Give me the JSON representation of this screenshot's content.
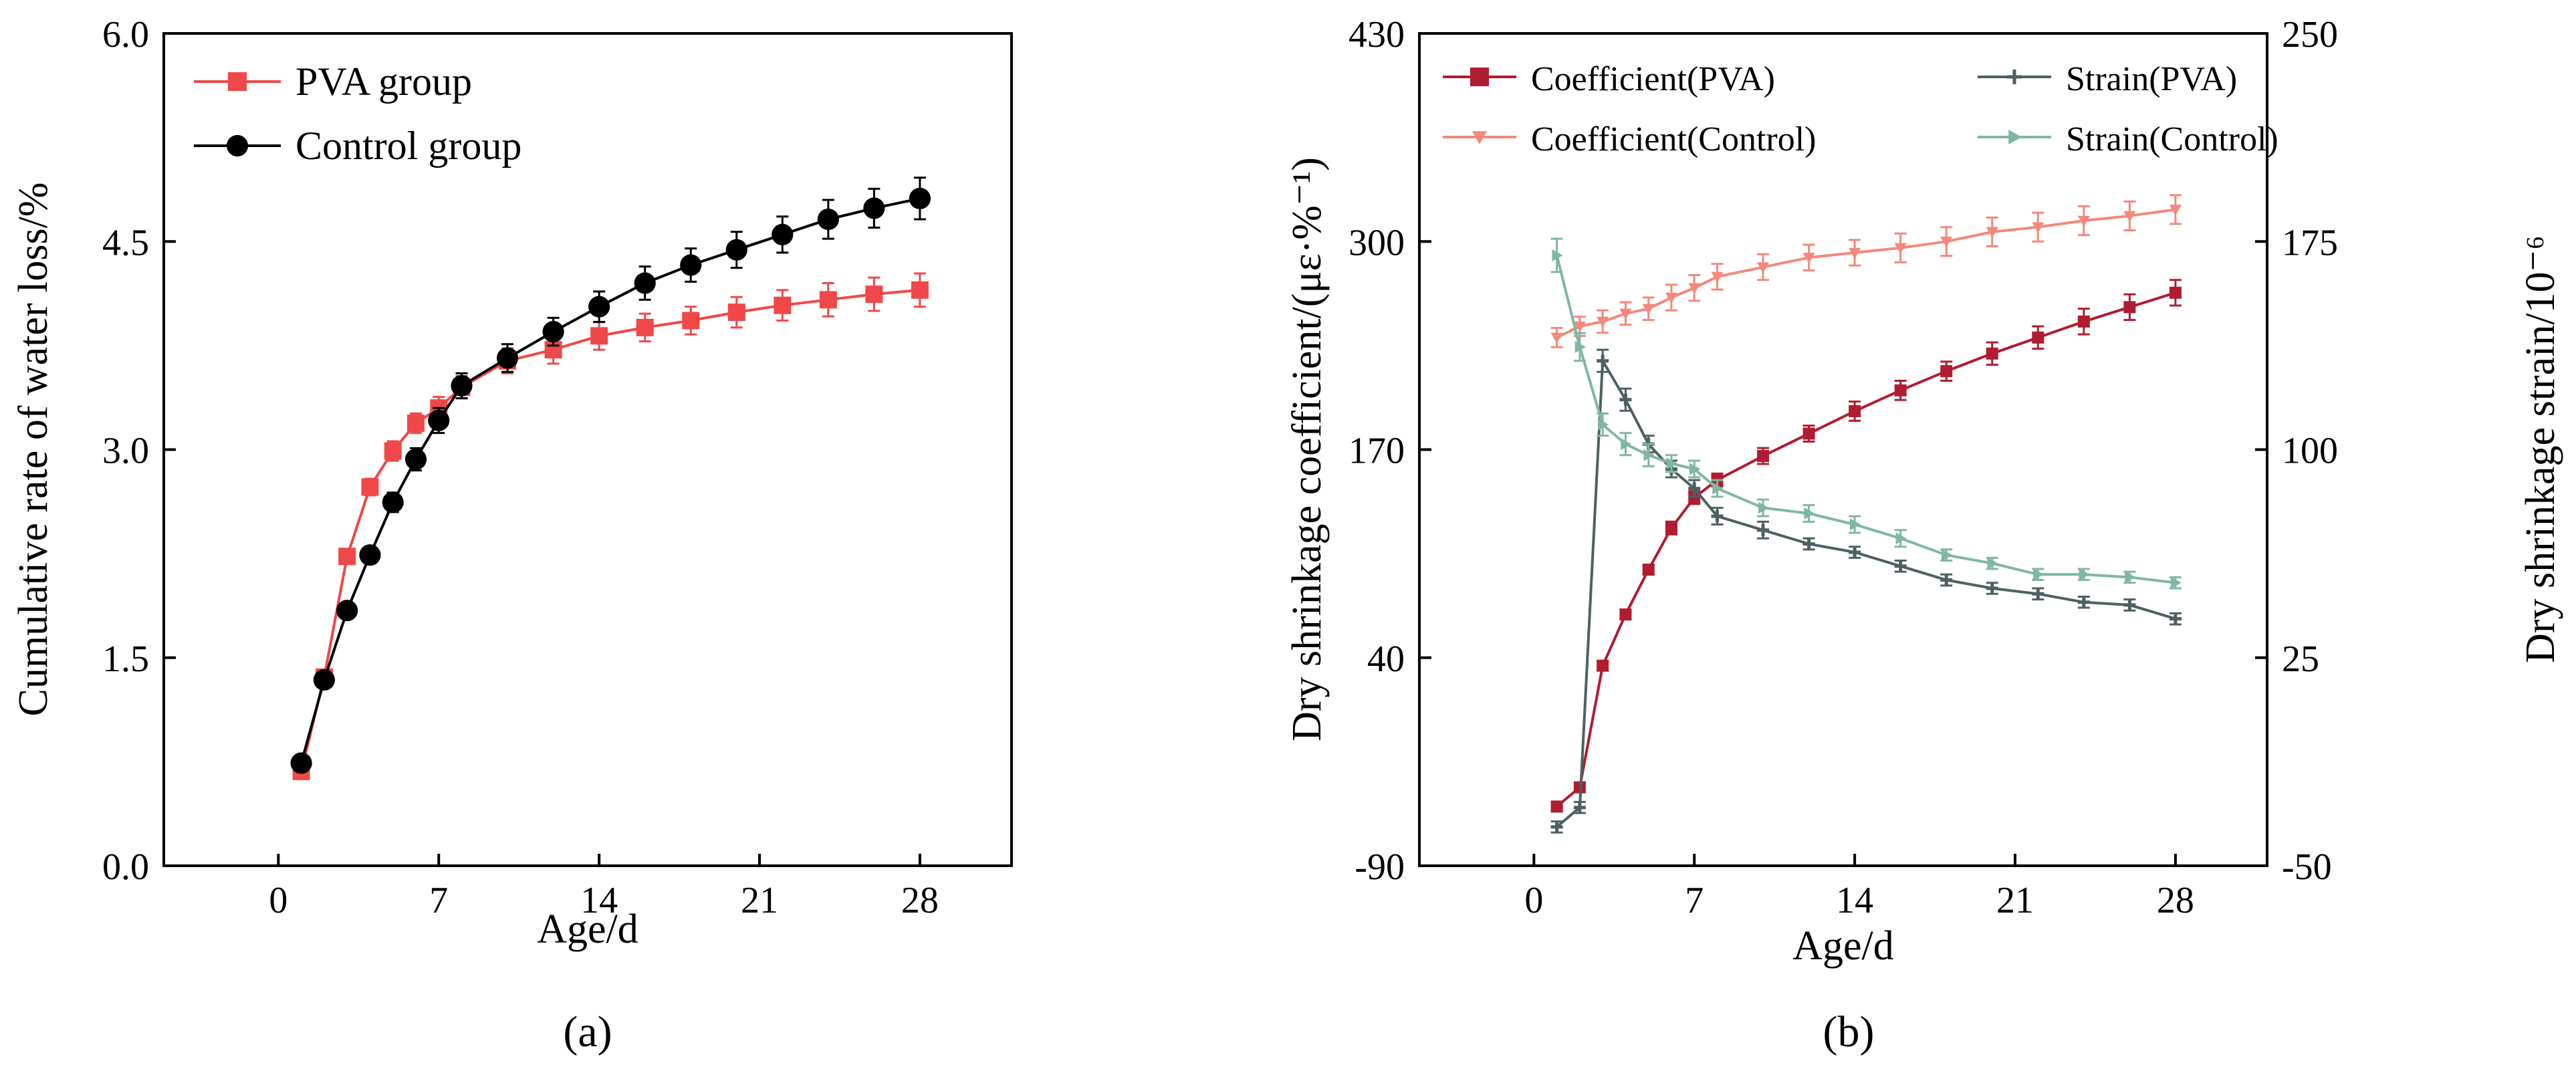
{
  "chart_data": [
    {
      "type": "line",
      "panel_label": "(a)",
      "xlabel": "Age/d",
      "ylabel": "Cumulative rate of water loss/%",
      "xlim": [
        -5,
        32
      ],
      "ylim": [
        0,
        6
      ],
      "xticks": [
        0,
        7,
        14,
        21,
        28
      ],
      "xtick_labels": [
        "0",
        "7",
        "14",
        "21",
        "28"
      ],
      "yticks": [
        0,
        1.5,
        3,
        4.5,
        6
      ],
      "ytick_labels": [
        "0.0",
        "1.5",
        "3.0",
        "4.5",
        "6.0"
      ],
      "legend": "top-left",
      "series": [
        {
          "name": "PVA group",
          "color": "#f04848",
          "marker": "square",
          "x": [
            1,
            2,
            3,
            4,
            5,
            6,
            7,
            8,
            10,
            12,
            14,
            16,
            18,
            20,
            22,
            24,
            26,
            28
          ],
          "y": [
            0.68,
            1.36,
            2.23,
            2.73,
            2.99,
            3.19,
            3.3,
            3.45,
            3.64,
            3.72,
            3.82,
            3.88,
            3.93,
            3.99,
            4.04,
            4.08,
            4.12,
            4.15
          ],
          "err": [
            0.03,
            0.04,
            0.05,
            0.06,
            0.07,
            0.07,
            0.08,
            0.08,
            0.09,
            0.1,
            0.1,
            0.1,
            0.1,
            0.11,
            0.11,
            0.12,
            0.12,
            0.12
          ]
        },
        {
          "name": "Control group",
          "color": "#000000",
          "marker": "circle",
          "x": [
            1,
            2,
            3,
            4,
            5,
            6,
            7,
            8,
            10,
            12,
            14,
            16,
            18,
            20,
            22,
            24,
            26,
            28
          ],
          "y": [
            0.74,
            1.34,
            1.84,
            2.24,
            2.62,
            2.93,
            3.21,
            3.46,
            3.66,
            3.85,
            4.03,
            4.2,
            4.33,
            4.44,
            4.55,
            4.66,
            4.74,
            4.81
          ],
          "err": [
            0.03,
            0.04,
            0.05,
            0.06,
            0.07,
            0.08,
            0.09,
            0.09,
            0.1,
            0.1,
            0.11,
            0.12,
            0.12,
            0.13,
            0.13,
            0.14,
            0.14,
            0.15
          ]
        }
      ]
    },
    {
      "type": "line",
      "panel_label": "(b)",
      "xlabel": "Age/d",
      "ylabel_left": "Dry shrinkage coefficient/(με·%⁻¹)",
      "ylabel_right": "Dry shrinkage strain/10⁻⁶",
      "xlim": [
        -5,
        32
      ],
      "ylim_left": [
        -90,
        430
      ],
      "ylim_right": [
        -50,
        250
      ],
      "xticks": [
        0,
        7,
        14,
        21,
        28
      ],
      "xtick_labels": [
        "0",
        "7",
        "14",
        "21",
        "28"
      ],
      "yticks_left": [
        -90,
        40,
        170,
        300,
        430
      ],
      "ytick_labels_left": [
        "-90",
        "40",
        "170",
        "300",
        "430"
      ],
      "yticks_right": [
        -50,
        25,
        100,
        175,
        250
      ],
      "ytick_labels_right": [
        "-50",
        "25",
        "100",
        "175",
        "250"
      ],
      "legend": "top",
      "series": [
        {
          "name": "Coefficient(PVA)",
          "axis": "left",
          "color": "#b01c30",
          "marker": "square",
          "x": [
            1,
            2,
            3,
            4,
            5,
            6,
            7,
            8,
            10,
            12,
            14,
            16,
            18,
            20,
            22,
            24,
            26,
            28
          ],
          "y": [
            -53,
            -41,
            35,
            67,
            95,
            121,
            140,
            151,
            166,
            180,
            194,
            207,
            219,
            230,
            240,
            250,
            259,
            268
          ],
          "err": [
            3,
            3,
            3,
            3,
            3,
            4,
            4,
            4,
            5,
            5,
            6,
            6,
            6,
            7,
            7,
            8,
            8,
            8
          ]
        },
        {
          "name": "Coefficient(Control)",
          "axis": "left",
          "color": "#f4887a",
          "marker": "triangle-down",
          "x": [
            1,
            2,
            3,
            4,
            5,
            6,
            7,
            8,
            10,
            12,
            14,
            16,
            18,
            20,
            22,
            24,
            26,
            28
          ],
          "y": [
            240,
            247,
            250,
            255,
            258,
            265,
            271,
            278,
            284,
            290,
            293,
            296,
            300,
            306,
            309,
            313,
            316,
            320
          ],
          "err": [
            6,
            6,
            7,
            7,
            7,
            8,
            8,
            8,
            8,
            8,
            8,
            9,
            9,
            9,
            9,
            9,
            9,
            9
          ]
        },
        {
          "name": "Strain(PVA)",
          "axis": "right",
          "color": "#4e6062",
          "marker": "plus",
          "x": [
            1,
            2,
            3,
            4,
            5,
            6,
            7,
            8,
            10,
            12,
            14,
            16,
            18,
            20,
            22,
            24,
            26,
            28
          ],
          "y": [
            -36,
            -29,
            132,
            118,
            102,
            93,
            86,
            76,
            71,
            66,
            63,
            58,
            53,
            50,
            48,
            45,
            44,
            39
          ],
          "err": [
            2,
            2,
            4,
            4,
            3,
            3,
            3,
            3,
            3,
            2,
            2,
            2,
            2,
            2,
            2,
            2,
            2,
            2
          ]
        },
        {
          "name": "Strain(Control)",
          "axis": "right",
          "color": "#7fb8a2",
          "marker": "triangle-right",
          "x": [
            1,
            2,
            3,
            4,
            5,
            6,
            7,
            8,
            10,
            12,
            14,
            16,
            18,
            20,
            22,
            24,
            26,
            28
          ],
          "y": [
            170,
            137,
            109,
            102,
            98,
            95,
            93,
            86,
            79,
            77,
            73,
            68,
            62,
            59,
            55,
            55,
            54,
            52
          ],
          "err": [
            6,
            5,
            4,
            4,
            4,
            3,
            3,
            3,
            3,
            3,
            3,
            3,
            2,
            2,
            2,
            2,
            2,
            2
          ]
        }
      ]
    }
  ]
}
